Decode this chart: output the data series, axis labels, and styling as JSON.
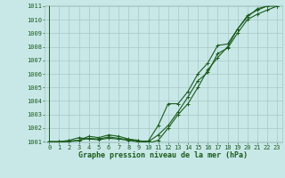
{
  "x": [
    0,
    1,
    2,
    3,
    4,
    5,
    6,
    7,
    8,
    9,
    10,
    11,
    12,
    13,
    14,
    15,
    16,
    17,
    18,
    19,
    20,
    21,
    22,
    23
  ],
  "line1": [
    1001.0,
    1001.0,
    1001.1,
    1001.3,
    1001.2,
    1001.15,
    1001.25,
    1001.2,
    1001.1,
    1001.0,
    1001.0,
    1001.5,
    1002.2,
    1003.2,
    1004.3,
    1005.5,
    1006.1,
    1007.5,
    1007.9,
    1009.0,
    1010.0,
    1010.4,
    1010.7,
    1011.0
  ],
  "line2": [
    1001.0,
    1001.0,
    1001.05,
    1001.1,
    1001.25,
    1001.2,
    1001.35,
    1001.25,
    1001.15,
    1001.05,
    1001.05,
    1002.2,
    1003.8,
    1003.8,
    1004.7,
    1006.0,
    1006.8,
    1008.1,
    1008.2,
    1009.3,
    1010.3,
    1010.7,
    1011.0,
    1011.0
  ],
  "line3": [
    1001.0,
    1001.0,
    1001.0,
    1001.1,
    1001.4,
    1001.3,
    1001.5,
    1001.4,
    1001.2,
    1001.1,
    1000.9,
    1001.1,
    1002.0,
    1003.0,
    1003.8,
    1005.0,
    1006.3,
    1007.2,
    1008.0,
    1009.3,
    1010.2,
    1010.8,
    1011.0,
    1011.0
  ],
  "ylim_min": 1001.0,
  "ylim_max": 1011.0,
  "xlim_min": 0,
  "xlim_max": 23,
  "yticks": [
    1001,
    1002,
    1003,
    1004,
    1005,
    1006,
    1007,
    1008,
    1009,
    1010,
    1011
  ],
  "xticks": [
    0,
    1,
    2,
    3,
    4,
    5,
    6,
    7,
    8,
    9,
    10,
    11,
    12,
    13,
    14,
    15,
    16,
    17,
    18,
    19,
    20,
    21,
    22,
    23
  ],
  "xlabel": "Graphe pression niveau de la mer (hPa)",
  "line_color": "#1a5c1a",
  "bg_color": "#c8e8e8",
  "grid_color": "#a8c8c8",
  "marker": "+",
  "marker_size": 3,
  "linewidth": 0.8,
  "tick_fontsize": 5,
  "xlabel_fontsize": 6,
  "xlabel_fontweight": "bold"
}
